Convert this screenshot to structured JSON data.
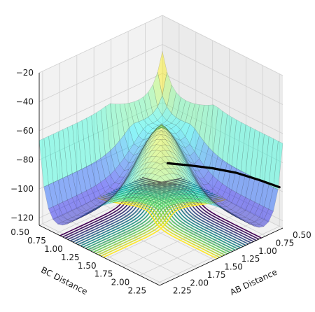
{
  "chart_data": {
    "type": "surface3d",
    "title": "",
    "xlabel": "AB Distance",
    "ylabel": "BC Distance",
    "zlabel": "",
    "xlim": [
      0.5,
      2.3
    ],
    "ylim": [
      0.5,
      2.3
    ],
    "zlim": [
      -125,
      -20
    ],
    "x_ticks": [
      0.5,
      0.75,
      1.0,
      1.25,
      1.5,
      1.75,
      2.0,
      2.25
    ],
    "x_tick_labels": [
      "0.50",
      "0.75",
      "1.00",
      "1.25",
      "1.50",
      "1.75",
      "2.00",
      "2.25"
    ],
    "y_ticks": [
      0.5,
      0.75,
      1.0,
      1.25,
      1.5,
      1.75,
      2.0,
      2.25
    ],
    "y_tick_labels": [
      "0.50",
      "0.75",
      "1.00",
      "1.25",
      "1.50",
      "1.75",
      "2.00",
      "2.25"
    ],
    "z_ticks": [
      -20,
      -40,
      -60,
      -80,
      -100,
      -120
    ],
    "z_tick_labels": [
      "−20",
      "−40",
      "−60",
      "−80",
      "−100",
      "−120"
    ],
    "grid": true,
    "surface_colormap": "jet",
    "contour_colormap": "viridis",
    "contour_levels": 18,
    "surface": {
      "barrier_height": -62,
      "saddle_point": [
        1.05,
        1.05
      ],
      "asymptote_energy": -102,
      "repulsive_wall_energy": -20
    },
    "trajectory": {
      "color": "#000000",
      "points": [
        {
          "x": 0.5,
          "y": 0.58,
          "z": -120
        },
        {
          "x": 0.5,
          "y": 0.9,
          "z": -114
        },
        {
          "x": 0.5,
          "y": 1.25,
          "z": -108
        },
        {
          "x": 0.5,
          "y": 1.6,
          "z": -103
        },
        {
          "x": 0.5,
          "y": 1.95,
          "z": -100
        },
        {
          "x": 0.5,
          "y": 2.25,
          "z": -98
        }
      ]
    }
  }
}
